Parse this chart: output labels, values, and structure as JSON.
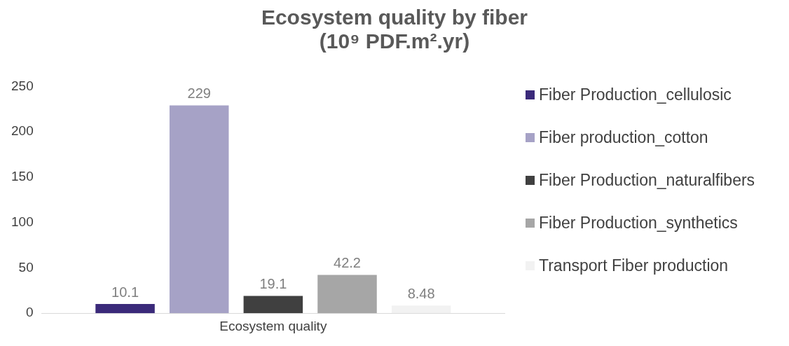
{
  "chart_data": {
    "type": "bar",
    "title": "Ecosystem quality by fiber\n(10⁹ PDF.m².yr)",
    "categories": [
      "Ecosystem quality"
    ],
    "series": [
      {
        "name": "Fiber Production_cellulosic",
        "color": "#3b2a7a",
        "values": [
          10.1
        ]
      },
      {
        "name": "Fiber production_cotton",
        "color": "#a6a2c6",
        "values": [
          229
        ]
      },
      {
        "name": "Fiber Production_naturalfibers",
        "color": "#404040",
        "values": [
          19.1
        ]
      },
      {
        "name": "Fiber Production_synthetics",
        "color": "#a6a6a6",
        "values": [
          42.2
        ]
      },
      {
        "name": "Transport Fiber production",
        "color": "#f2f2f2",
        "values": [
          8.48
        ]
      }
    ],
    "ylim": [
      0,
      250
    ],
    "yticks": [
      0,
      50,
      100,
      150,
      200,
      250
    ],
    "grid": false,
    "legend": "right",
    "data_labels": true
  }
}
